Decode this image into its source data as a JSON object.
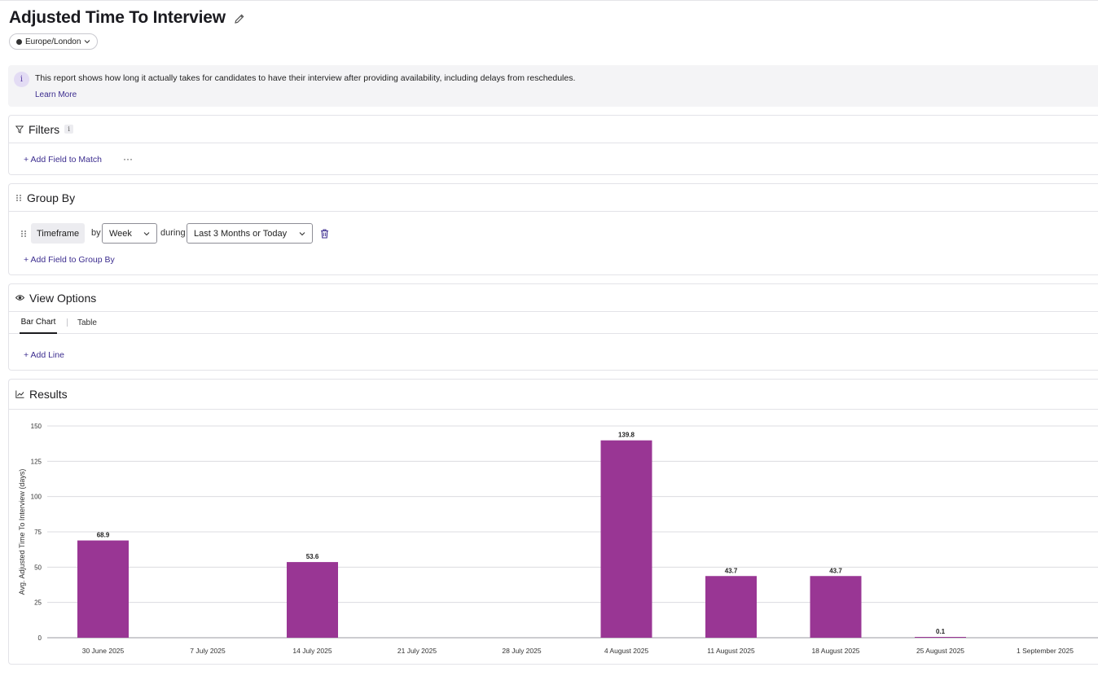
{
  "page": {
    "title": "Adjusted Time To Interview",
    "timezone": "Europe/London"
  },
  "info": {
    "text": "This report shows how long it actually takes for candidates to have their interview after providing availability, including delays from reschedules.",
    "learn_more": "Learn More"
  },
  "filters": {
    "title": "Filters",
    "add_field": "+ Add Field to Match",
    "more": "···"
  },
  "group_by": {
    "title": "Group By",
    "field": "Timeframe",
    "by_label": "by",
    "interval": "Week",
    "during_label": "during",
    "range": "Last 3 Months or Today",
    "add_field": "+ Add Field to Group By"
  },
  "view_options": {
    "title": "View Options",
    "tabs": [
      {
        "label": "Bar Chart",
        "active": true
      },
      {
        "label": "Table",
        "active": false
      }
    ],
    "add_line": "+ Add Line"
  },
  "results": {
    "title": "Results"
  },
  "colors": {
    "bar": "#993694",
    "accent_link": "#3c2d8f"
  },
  "chart_data": {
    "type": "bar",
    "ylabel": "Avg. Adjusted Time To Interview (days)",
    "xlabel": "",
    "ylim": [
      0,
      150
    ],
    "yticks": [
      0,
      25,
      50,
      75,
      100,
      125,
      150
    ],
    "grid": true,
    "categories": [
      "30 June 2025",
      "7 July 2025",
      "14 July 2025",
      "21 July 2025",
      "28 July 2025",
      "4 August 2025",
      "11 August 2025",
      "18 August 2025",
      "25 August 2025",
      "1 September 2025"
    ],
    "values": [
      68.9,
      null,
      53.6,
      null,
      null,
      139.8,
      43.7,
      43.7,
      0.1,
      null
    ],
    "labels": [
      "68.9",
      "",
      "53.6",
      "",
      "",
      "139.8",
      "43.7",
      "43.7",
      "0.1",
      ""
    ]
  }
}
